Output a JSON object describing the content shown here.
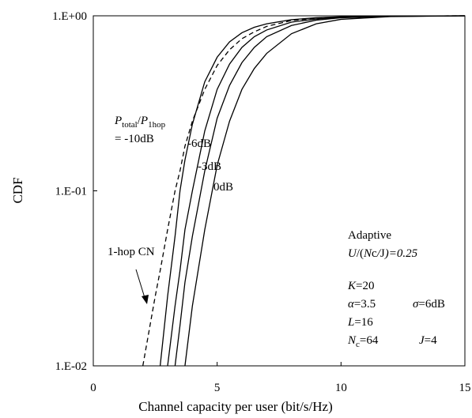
{
  "chart_data": {
    "type": "line",
    "xlabel": "Channel capacity per user (bit/s/Hz)",
    "ylabel": "CDF",
    "log_y": true,
    "xlim": [
      0,
      15
    ],
    "xticks": [
      0,
      5,
      10,
      15
    ],
    "ylim": [
      0.01,
      1
    ],
    "yticks": [
      {
        "value": 0.01,
        "label": "1.E-02"
      },
      {
        "value": 0.1,
        "label": "1.E-01"
      },
      {
        "value": 1,
        "label": "1.E+00"
      }
    ],
    "x": [
      2,
      2.5,
      2.7,
      3,
      3.3,
      3.5,
      3.7,
      4,
      4.5,
      5,
      5.5,
      6,
      6.5,
      7,
      8,
      9,
      10,
      12,
      15
    ],
    "series": [
      {
        "color": "#000000",
        "values": [
          null,
          null,
          0.01,
          0.025,
          0.055,
          0.1,
          0.15,
          0.24,
          0.42,
          0.58,
          0.71,
          0.8,
          0.86,
          0.9,
          0.95,
          0.975,
          0.988,
          0.997,
          1
        ]
      },
      {
        "color": "#000000",
        "values": [
          null,
          null,
          null,
          0.01,
          0.022,
          0.035,
          0.06,
          0.1,
          0.22,
          0.38,
          0.53,
          0.66,
          0.76,
          0.83,
          0.92,
          0.96,
          0.98,
          0.995,
          1
        ]
      },
      {
        "color": "#000000",
        "values": [
          null,
          null,
          null,
          null,
          0.01,
          0.017,
          0.03,
          0.055,
          0.13,
          0.26,
          0.4,
          0.54,
          0.66,
          0.76,
          0.88,
          0.945,
          0.975,
          0.993,
          1
        ]
      },
      {
        "color": "#000000",
        "values": [
          null,
          null,
          null,
          null,
          null,
          null,
          0.01,
          0.022,
          0.06,
          0.14,
          0.25,
          0.38,
          0.5,
          0.61,
          0.79,
          0.9,
          0.955,
          0.99,
          1
        ]
      },
      {
        "color": "#000000",
        "dashed": true,
        "values": [
          0.01,
          0.025,
          0.035,
          0.06,
          0.1,
          0.13,
          0.18,
          0.25,
          0.38,
          0.52,
          0.64,
          0.74,
          0.81,
          0.87,
          0.94,
          0.97,
          0.985,
          0.996,
          1
        ]
      }
    ],
    "annotations": [
      [
        "P",
        "total",
        "/",
        "P",
        "1hop"
      ],
      [
        "= -10dB"
      ],
      [
        "-6dB"
      ],
      [
        "-3dB"
      ],
      [
        "0dB"
      ],
      [
        "1-hop CN"
      ],
      [
        "Adaptive"
      ],
      [
        "U",
        "/(",
        "N",
        "c",
        "/",
        "J",
        ")=0.25"
      ],
      [
        "K",
        "=20"
      ],
      [
        "α",
        "=3.5"
      ],
      [
        "σ",
        "=6dB"
      ],
      [
        "L",
        "=16"
      ],
      [
        "N",
        "c",
        "=64"
      ],
      [
        "J",
        "=4"
      ]
    ]
  }
}
